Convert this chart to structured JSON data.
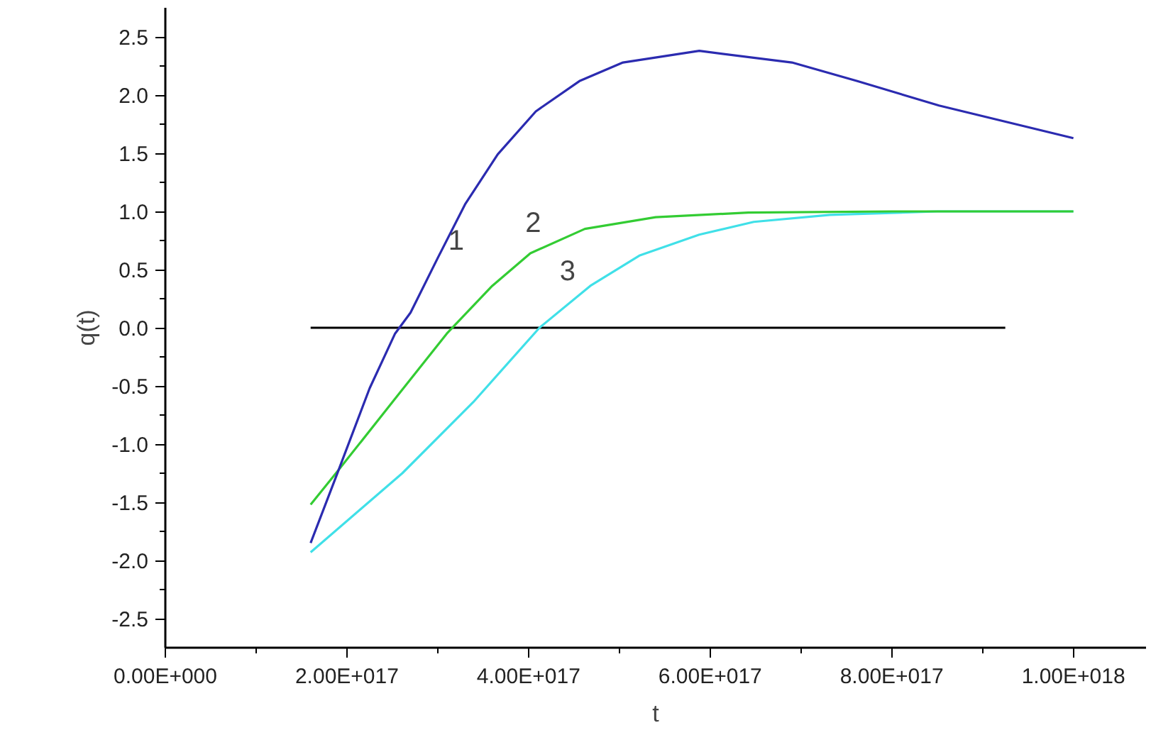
{
  "chart_data": {
    "type": "line",
    "xlabel": "t",
    "ylabel": "q(t)",
    "xlim": [
      0,
      1.08e+18
    ],
    "ylim": [
      -2.75,
      2.75
    ],
    "xticks": [
      {
        "value": 0,
        "label": "0.00E+000"
      },
      {
        "value": 2e+17,
        "label": "2.00E+017"
      },
      {
        "value": 4e+17,
        "label": "4.00E+017"
      },
      {
        "value": 6e+17,
        "label": "6.00E+017"
      },
      {
        "value": 8e+17,
        "label": "8.00E+017"
      },
      {
        "value": 1e+18,
        "label": "1.00E+018"
      }
    ],
    "yticks": [
      {
        "value": -2.5,
        "label": "-2.5"
      },
      {
        "value": -2,
        "label": "-2.0"
      },
      {
        "value": -1.5,
        "label": "-1.5"
      },
      {
        "value": -1,
        "label": "-1.0"
      },
      {
        "value": -0.5,
        "label": "-0.5"
      },
      {
        "value": 0,
        "label": "0.0"
      },
      {
        "value": 0.5,
        "label": "0.5"
      },
      {
        "value": 1,
        "label": "1.0"
      },
      {
        "value": 1.5,
        "label": "1.5"
      },
      {
        "value": 2,
        "label": "2.0"
      },
      {
        "value": 2.5,
        "label": "2.5"
      }
    ],
    "grid": false,
    "series": [
      {
        "name": "1",
        "color": "#2b2bb0",
        "x": [
          1.6e+17,
          1.89e+17,
          2.25e+17,
          2.53e+17,
          2.7e+17,
          3e+17,
          3.3e+17,
          3.66e+17,
          4.08e+17,
          4.56e+17,
          5.04e+17,
          5.88e+17,
          6.9e+17,
          7.62e+17,
          8.52e+17,
          1e+18
        ],
        "values": [
          -1.85,
          -1.26,
          -0.52,
          -0.05,
          0.13,
          0.6,
          1.06,
          1.49,
          1.86,
          2.12,
          2.28,
          2.38,
          2.28,
          2.12,
          1.91,
          1.63
        ]
      },
      {
        "name": "2",
        "color": "#33cc33",
        "x": [
          1.6e+17,
          1.89e+17,
          2.51e+17,
          3.1e+17,
          3.6e+17,
          4.02e+17,
          4.62e+17,
          5.4e+17,
          6.42e+17,
          8e+17,
          1e+18
        ],
        "values": [
          -1.52,
          -1.24,
          -0.63,
          -0.05,
          0.36,
          0.64,
          0.85,
          0.95,
          0.99,
          1.0,
          1.0
        ]
      },
      {
        "name": "3",
        "color": "#40e0e8",
        "x": [
          1.6e+17,
          2.61e+17,
          3.39e+17,
          4.12e+17,
          4.68e+17,
          5.22e+17,
          5.88e+17,
          6.48e+17,
          7.32e+17,
          8.5e+17,
          1e+18
        ],
        "values": [
          -1.93,
          -1.25,
          -0.64,
          0.0,
          0.36,
          0.62,
          0.8,
          0.91,
          0.97,
          1.0,
          1.0
        ]
      },
      {
        "color": "#000000",
        "x": [
          1.6e+17,
          9.25e+17
        ],
        "values": [
          0,
          0
        ]
      }
    ]
  }
}
